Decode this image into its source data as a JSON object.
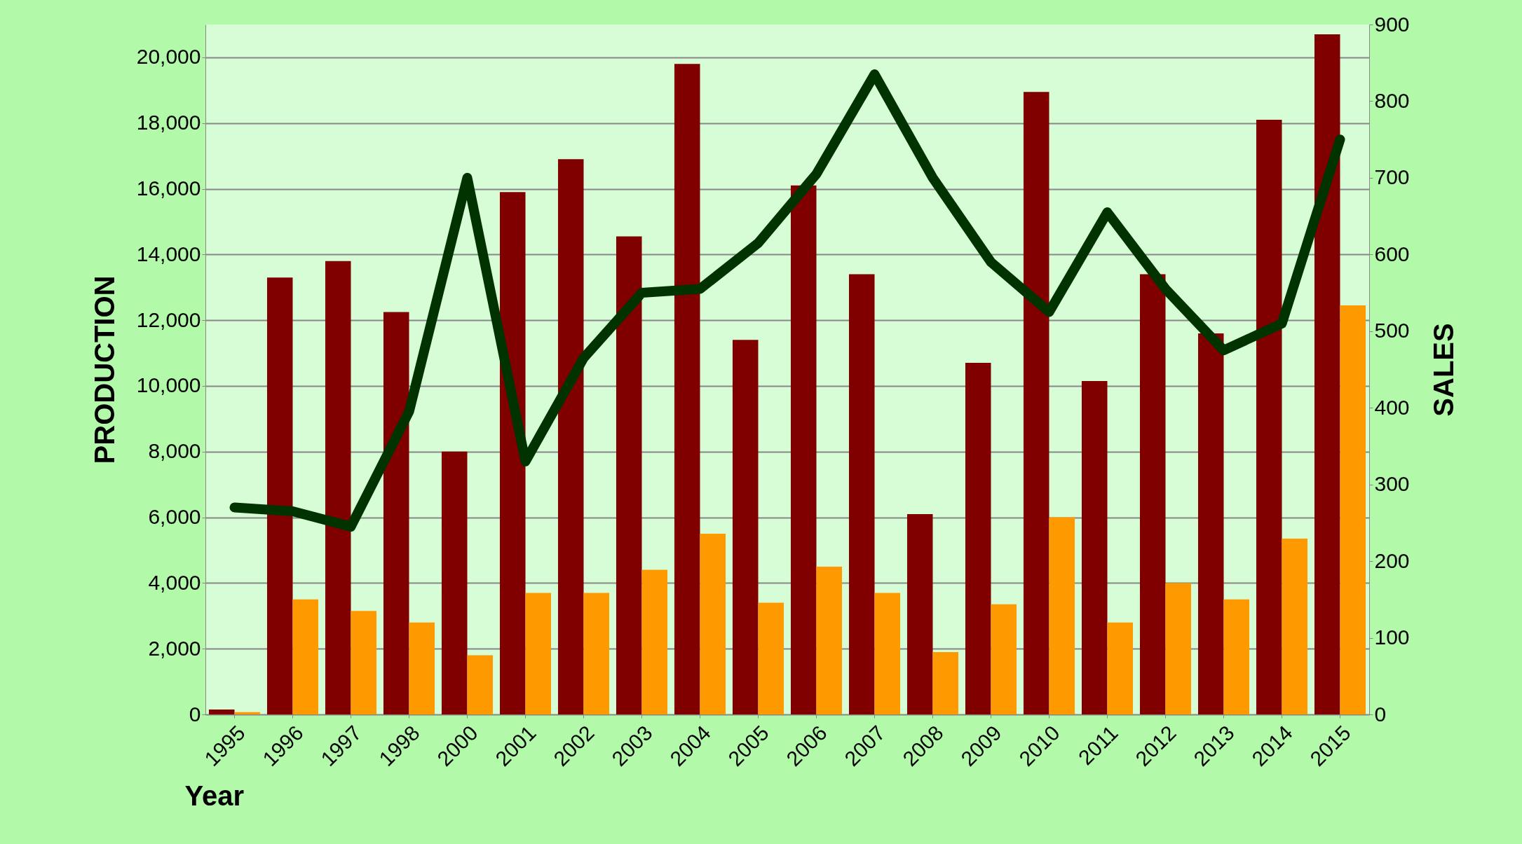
{
  "chart_data": {
    "type": "bar",
    "xlabel": "Year",
    "ylabel": "PRODUCTION",
    "y2label": "SALES",
    "categories": [
      "1995",
      "1996",
      "1997",
      "1998",
      "2000",
      "2001",
      "2002",
      "2003",
      "2004",
      "2005",
      "2006",
      "2007",
      "2008",
      "2009",
      "2010",
      "2011",
      "2012",
      "2013",
      "2014",
      "2015"
    ],
    "series": [
      {
        "color": "#800000",
        "values": [
          150,
          13300,
          13800,
          12250,
          8000,
          15900,
          16900,
          14550,
          19800,
          11400,
          16100,
          13400,
          6100,
          10700,
          18950,
          10150,
          13400,
          11600,
          18100,
          20700
        ]
      },
      {
        "color": "#ff9900",
        "values": [
          70,
          3500,
          3150,
          2800,
          1800,
          3700,
          3700,
          4400,
          5500,
          3400,
          4500,
          3700,
          1900,
          3350,
          6000,
          2800,
          4000,
          3500,
          5350,
          12450
        ]
      },
      {
        "type": "line",
        "axis": "y2",
        "color": "#003300",
        "values": [
          270,
          265,
          245,
          395,
          700,
          330,
          465,
          550,
          555,
          615,
          705,
          835,
          700,
          590,
          525,
          655,
          555,
          475,
          510,
          750
        ]
      }
    ],
    "ylim": [
      0,
      21000
    ],
    "yticks": [
      0,
      {
        "value": 2000,
        "label": "2,000"
      },
      {
        "value": 4000,
        "label": "4,000"
      },
      {
        "value": 6000,
        "label": "6,000"
      },
      {
        "value": 8000,
        "label": "8,000"
      },
      {
        "value": 10000,
        "label": "10,000"
      },
      {
        "value": 12000,
        "label": "12,000"
      },
      {
        "value": 14000,
        "label": "14,000"
      },
      {
        "value": 16000,
        "label": "16,000"
      },
      {
        "value": 18000,
        "label": "18,000"
      },
      {
        "value": 20000,
        "label": "20,000"
      }
    ],
    "y2lim": [
      0,
      900
    ],
    "y2ticks": [
      0,
      100,
      200,
      300,
      400,
      500,
      600,
      700,
      800,
      900
    ],
    "grid": "y"
  }
}
